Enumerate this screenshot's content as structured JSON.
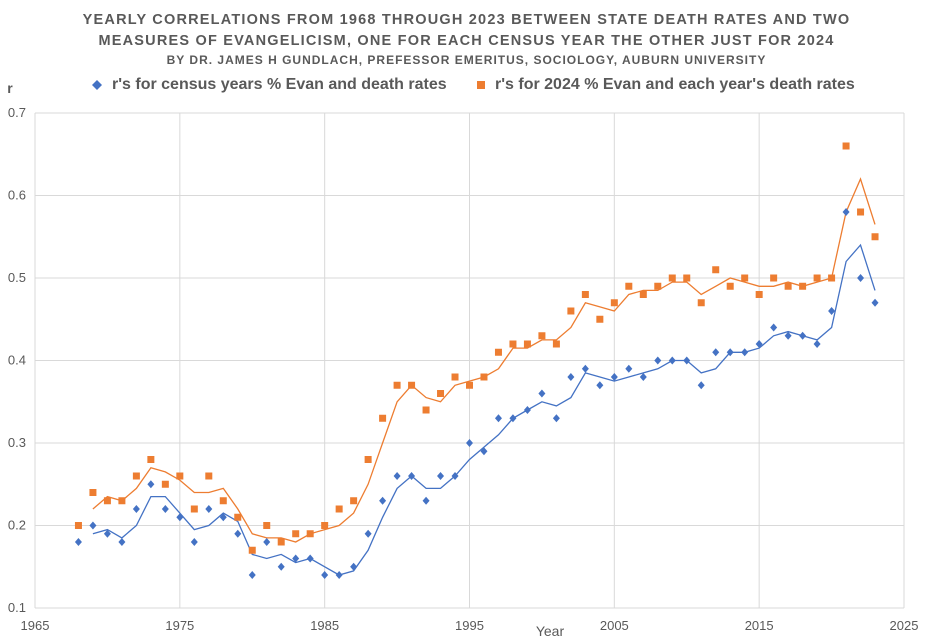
{
  "title": {
    "line1": "YEARLY CORRELATIONS FROM 1968 THROUGH 2023 BETWEEN STATE DEATH RATES AND TWO",
    "line2": "MEASURES OF EVANGELICISM, ONE FOR EACH CENSUS YEAR THE OTHER JUST FOR 2024",
    "line3": "BY DR. JAMES H GUNDLACH, PREFESSOR EMERITUS, SOCIOLOGY, AUBURN UNIVERSITY"
  },
  "colors": {
    "blue": "#4472c4",
    "orange": "#ed7d31",
    "grid": "#d9d9d9",
    "text": "#595959"
  },
  "chart_data": {
    "type": "scatter",
    "ylabel": "r",
    "xlabel": "Year",
    "xlim": [
      1965,
      2025
    ],
    "ylim": [
      0.1,
      0.7
    ],
    "xticks": [
      1965,
      1975,
      1985,
      1995,
      2005,
      2015,
      2025
    ],
    "yticks": [
      0.1,
      0.2,
      0.3,
      0.4,
      0.5,
      0.6,
      0.7
    ],
    "ytick_labels": [
      "0.1",
      "0.2",
      "0.3",
      "0.4",
      "0.5",
      "0.6",
      "0.7"
    ],
    "grid": true,
    "legend_position": "top",
    "x": [
      1968,
      1969,
      1970,
      1971,
      1972,
      1973,
      1974,
      1975,
      1976,
      1977,
      1978,
      1979,
      1980,
      1981,
      1982,
      1983,
      1984,
      1985,
      1986,
      1987,
      1988,
      1989,
      1990,
      1991,
      1992,
      1993,
      1994,
      1995,
      1996,
      1997,
      1998,
      1999,
      2000,
      2001,
      2002,
      2003,
      2004,
      2005,
      2006,
      2007,
      2008,
      2009,
      2010,
      2011,
      2012,
      2013,
      2014,
      2015,
      2016,
      2017,
      2018,
      2019,
      2020,
      2021,
      2022,
      2023
    ],
    "series": [
      {
        "name": "r's  for census years % Evan and death rates",
        "color": "#4472c4",
        "marker": "diamond",
        "values": [
          0.18,
          0.2,
          0.19,
          0.18,
          0.22,
          0.25,
          0.22,
          0.21,
          0.18,
          0.22,
          0.21,
          0.19,
          0.14,
          0.18,
          0.15,
          0.16,
          0.16,
          0.14,
          0.14,
          0.15,
          0.19,
          0.23,
          0.26,
          0.26,
          0.23,
          0.26,
          0.26,
          0.3,
          0.29,
          0.33,
          0.33,
          0.34,
          0.36,
          0.33,
          0.38,
          0.39,
          0.37,
          0.38,
          0.39,
          0.38,
          0.4,
          0.4,
          0.4,
          0.37,
          0.41,
          0.41,
          0.41,
          0.42,
          0.44,
          0.43,
          0.43,
          0.42,
          0.46,
          0.58,
          0.5,
          0.47
        ],
        "trend": [
          0.19,
          0.195,
          0.185,
          0.2,
          0.235,
          0.235,
          0.215,
          0.195,
          0.2,
          0.215,
          0.205,
          0.165,
          0.16,
          0.165,
          0.155,
          0.16,
          0.15,
          0.14,
          0.145,
          0.17,
          0.21,
          0.245,
          0.26,
          0.245,
          0.245,
          0.26,
          0.28,
          0.295,
          0.31,
          0.33,
          0.34,
          0.35,
          0.345,
          0.355,
          0.385,
          0.38,
          0.375,
          0.38,
          0.385,
          0.39,
          0.4,
          0.4,
          0.385,
          0.39,
          0.41,
          0.41,
          0.415,
          0.43,
          0.435,
          0.43,
          0.425,
          0.44,
          0.52,
          0.54,
          0.485
        ]
      },
      {
        "name": "r's for 2024 % Evan and each year's death rates",
        "color": "#ed7d31",
        "marker": "square",
        "values": [
          0.2,
          0.24,
          0.23,
          0.23,
          0.26,
          0.28,
          0.25,
          0.26,
          0.22,
          0.26,
          0.23,
          0.21,
          0.17,
          0.2,
          0.18,
          0.19,
          0.19,
          0.2,
          0.22,
          0.23,
          0.28,
          0.33,
          0.37,
          0.37,
          0.34,
          0.36,
          0.38,
          0.37,
          0.38,
          0.41,
          0.42,
          0.42,
          0.43,
          0.42,
          0.46,
          0.48,
          0.45,
          0.47,
          0.49,
          0.48,
          0.49,
          0.5,
          0.5,
          0.47,
          0.51,
          0.49,
          0.5,
          0.48,
          0.5,
          0.49,
          0.49,
          0.5,
          0.5,
          0.66,
          0.58,
          0.55
        ],
        "trend": [
          0.22,
          0.235,
          0.23,
          0.245,
          0.27,
          0.265,
          0.255,
          0.24,
          0.24,
          0.245,
          0.22,
          0.19,
          0.185,
          0.185,
          0.18,
          0.19,
          0.195,
          0.2,
          0.215,
          0.25,
          0.3,
          0.35,
          0.37,
          0.355,
          0.35,
          0.37,
          0.375,
          0.38,
          0.39,
          0.415,
          0.415,
          0.425,
          0.425,
          0.44,
          0.47,
          0.465,
          0.46,
          0.48,
          0.485,
          0.485,
          0.495,
          0.495,
          0.48,
          0.49,
          0.5,
          0.495,
          0.49,
          0.49,
          0.495,
          0.49,
          0.495,
          0.5,
          0.58,
          0.62,
          0.565
        ]
      }
    ]
  }
}
